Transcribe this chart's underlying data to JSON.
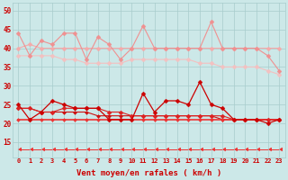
{
  "x": [
    0,
    1,
    2,
    3,
    4,
    5,
    6,
    7,
    8,
    9,
    10,
    11,
    12,
    13,
    14,
    15,
    16,
    17,
    18,
    19,
    20,
    21,
    22,
    23
  ],
  "series": [
    {
      "label": "rafales_jagged",
      "color": "#f09090",
      "linewidth": 0.8,
      "markersize": 2.5,
      "marker": "D",
      "zorder": 3,
      "values": [
        44,
        38,
        42,
        41,
        44,
        44,
        37,
        43,
        41,
        37,
        40,
        46,
        40,
        40,
        40,
        40,
        40,
        47,
        40,
        40,
        40,
        40,
        38,
        34
      ]
    },
    {
      "label": "rafales_smooth_high",
      "color": "#f4aaaa",
      "linewidth": 0.8,
      "markersize": 2.5,
      "marker": "D",
      "zorder": 2,
      "values": [
        40,
        41,
        40,
        40,
        40,
        40,
        40,
        40,
        40,
        40,
        40,
        40,
        40,
        40,
        40,
        40,
        40,
        40,
        40,
        40,
        40,
        40,
        40,
        40
      ]
    },
    {
      "label": "rafales_smooth_low",
      "color": "#f4c0c0",
      "linewidth": 0.8,
      "markersize": 2.5,
      "marker": "D",
      "zorder": 2,
      "values": [
        38,
        38,
        38,
        38,
        37,
        37,
        36,
        36,
        36,
        36,
        37,
        37,
        37,
        37,
        37,
        37,
        36,
        36,
        35,
        35,
        35,
        35,
        34,
        33
      ]
    },
    {
      "label": "vent_jagged",
      "color": "#cc0000",
      "linewidth": 0.9,
      "markersize": 2.5,
      "marker": "D",
      "zorder": 4,
      "values": [
        25,
        21,
        23,
        26,
        25,
        24,
        24,
        24,
        21,
        21,
        21,
        28,
        23,
        26,
        26,
        25,
        31,
        25,
        24,
        21,
        21,
        21,
        20,
        21
      ]
    },
    {
      "label": "vent_smooth_high",
      "color": "#dd2222",
      "linewidth": 0.8,
      "markersize": 2.5,
      "marker": "D",
      "zorder": 3,
      "values": [
        24,
        24,
        23,
        23,
        24,
        24,
        24,
        24,
        23,
        23,
        22,
        22,
        22,
        22,
        22,
        22,
        22,
        22,
        22,
        21,
        21,
        21,
        21,
        21
      ]
    },
    {
      "label": "vent_smooth_mid",
      "color": "#cc1111",
      "linewidth": 0.8,
      "markersize": 2.0,
      "marker": "D",
      "zorder": 2,
      "values": [
        24,
        24,
        23,
        23,
        23,
        23,
        23,
        22,
        22,
        22,
        22,
        22,
        22,
        22,
        22,
        22,
        22,
        22,
        21,
        21,
        21,
        21,
        21,
        21
      ]
    },
    {
      "label": "vent_smooth_low",
      "color": "#ee3333",
      "linewidth": 1.2,
      "markersize": 2.0,
      "marker": "D",
      "zorder": 2,
      "values": [
        21,
        21,
        21,
        21,
        21,
        21,
        21,
        21,
        21,
        21,
        21,
        21,
        21,
        21,
        21,
        21,
        21,
        21,
        21,
        21,
        21,
        21,
        21,
        21
      ]
    },
    {
      "label": "wind_dir",
      "color": "#ee3333",
      "linewidth": 0.7,
      "markersize": 3.5,
      "marker": 4,
      "zorder": 1,
      "values": [
        13,
        13,
        13,
        13,
        13,
        13,
        13,
        13,
        13,
        13,
        13,
        13,
        13,
        13,
        13,
        13,
        13,
        13,
        13,
        13,
        13,
        13,
        13,
        13
      ]
    }
  ],
  "xlabel": "Vent moyen/en rafales ( km/h )",
  "xlim": [
    -0.5,
    23.5
  ],
  "ylim": [
    11,
    52
  ],
  "yticks": [
    15,
    20,
    25,
    30,
    35,
    40,
    45,
    50
  ],
  "xticks": [
    0,
    1,
    2,
    3,
    4,
    5,
    6,
    7,
    8,
    9,
    10,
    11,
    12,
    13,
    14,
    15,
    16,
    17,
    18,
    19,
    20,
    21,
    22,
    23
  ],
  "bg_color": "#cce8e8",
  "grid_color": "#a8cccc",
  "xlabel_color": "#cc0000",
  "tick_color": "#cc0000",
  "figsize": [
    3.2,
    2.0
  ],
  "dpi": 100
}
